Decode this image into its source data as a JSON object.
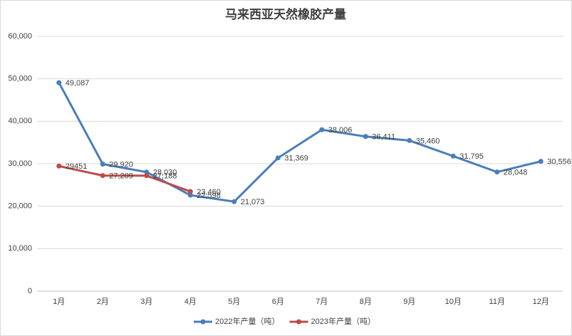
{
  "chart_data": {
    "type": "line",
    "title": "马来西亚天然橡胶产量",
    "categories": [
      "1月",
      "2月",
      "3月",
      "4月",
      "5月",
      "6月",
      "7月",
      "8月",
      "9月",
      "10月",
      "11月",
      "12月"
    ],
    "series": [
      {
        "name": "2022年产量（吨）",
        "color": "#4a7ebb",
        "values": [
          49087,
          29920,
          28030,
          22598,
          21073,
          31369,
          38006,
          36411,
          35460,
          31795,
          28048,
          30556
        ],
        "value_labels": [
          "49,087",
          "29,920",
          "28,030",
          "22,598",
          "21,073",
          "31,369",
          "38,006",
          "36,411",
          "35,460",
          "31,795",
          "28,048",
          "30,556"
        ]
      },
      {
        "name": "2023年产量（吨）",
        "color": "#be4b48",
        "values": [
          29451,
          27209,
          27188,
          23460,
          null,
          null,
          null,
          null,
          null,
          null,
          null,
          null
        ],
        "value_labels": [
          "29451",
          "27,209",
          "27,188",
          "23,460",
          null,
          null,
          null,
          null,
          null,
          null,
          null,
          null
        ]
      }
    ],
    "ylim": [
      0,
      60000
    ],
    "yticks": [
      0,
      {
        "value": 10000,
        "label": "10,000"
      },
      {
        "value": 20000,
        "label": "20,000"
      },
      {
        "value": 30000,
        "label": "30,000"
      },
      {
        "value": 40000,
        "label": "40,000"
      },
      {
        "value": 50000,
        "label": "50,000"
      },
      {
        "value": 60000,
        "label": "60,000"
      }
    ],
    "grid": true,
    "legend": "bottom"
  }
}
